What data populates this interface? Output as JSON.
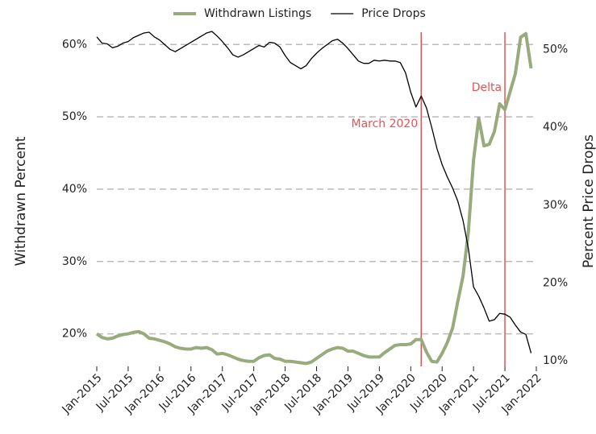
{
  "chart_data": {
    "type": "line",
    "y_label": "Withdrawn Percent",
    "y2_label": "Percent Price Drops",
    "x": [
      "2015-01",
      "2015-02",
      "2015-03",
      "2015-04",
      "2015-05",
      "2015-06",
      "2015-07",
      "2015-08",
      "2015-09",
      "2015-10",
      "2015-11",
      "2015-12",
      "2016-01",
      "2016-02",
      "2016-03",
      "2016-04",
      "2016-05",
      "2016-06",
      "2016-07",
      "2016-08",
      "2016-09",
      "2016-10",
      "2016-11",
      "2016-12",
      "2017-01",
      "2017-02",
      "2017-03",
      "2017-04",
      "2017-05",
      "2017-06",
      "2017-07",
      "2017-08",
      "2017-09",
      "2017-10",
      "2017-11",
      "2017-12",
      "2018-01",
      "2018-02",
      "2018-03",
      "2018-04",
      "2018-05",
      "2018-06",
      "2018-07",
      "2018-08",
      "2018-09",
      "2018-10",
      "2018-11",
      "2018-12",
      "2019-01",
      "2019-02",
      "2019-03",
      "2019-04",
      "2019-05",
      "2019-06",
      "2019-07",
      "2019-08",
      "2019-09",
      "2019-10",
      "2019-11",
      "2019-12",
      "2020-01",
      "2020-02",
      "2020-03",
      "2020-04",
      "2020-05",
      "2020-06",
      "2020-07",
      "2020-08",
      "2020-09",
      "2020-10",
      "2020-11",
      "2020-12",
      "2021-01",
      "2021-02",
      "2021-03",
      "2021-04",
      "2021-05",
      "2021-06",
      "2021-07",
      "2021-08",
      "2021-09",
      "2021-10",
      "2021-11",
      "2021-12"
    ],
    "series": [
      {
        "name": "Withdrawn Listings",
        "color": "#98ab7c",
        "axis": "y",
        "values": [
          20.0,
          19.5,
          19.3,
          19.4,
          19.7,
          19.9,
          20.0,
          20.2,
          20.3,
          20.0,
          19.4,
          19.3,
          19.1,
          18.9,
          18.6,
          18.2,
          18.0,
          17.9,
          17.9,
          18.1,
          18.0,
          18.1,
          17.8,
          17.2,
          17.3,
          17.1,
          16.8,
          16.5,
          16.3,
          16.2,
          16.2,
          16.7,
          17.0,
          17.1,
          16.6,
          16.5,
          16.2,
          16.2,
          16.1,
          16.0,
          15.9,
          16.1,
          16.6,
          17.1,
          17.6,
          17.9,
          18.1,
          18.0,
          17.6,
          17.6,
          17.3,
          17.0,
          16.8,
          16.8,
          16.8,
          17.4,
          17.9,
          18.4,
          18.5,
          18.5,
          18.6,
          19.2,
          19.2,
          17.5,
          16.2,
          16.1,
          17.3,
          18.8,
          20.8,
          24.5,
          28.0,
          34.0,
          44.0,
          49.8,
          46.0,
          46.2,
          48.0,
          51.8,
          51.0,
          53.5,
          56.0,
          61.0,
          61.5,
          56.7
        ]
      },
      {
        "name": "Price Drops",
        "color": "#000000",
        "axis": "y2",
        "values": [
          51.6,
          50.8,
          50.7,
          50.2,
          50.4,
          50.8,
          51.0,
          51.5,
          51.8,
          52.1,
          52.2,
          51.6,
          51.2,
          50.6,
          50.0,
          49.7,
          50.1,
          50.5,
          50.9,
          51.3,
          51.7,
          52.1,
          52.3,
          51.7,
          51.0,
          50.2,
          49.3,
          49.0,
          49.3,
          49.7,
          50.1,
          50.5,
          50.3,
          50.9,
          50.8,
          50.3,
          49.2,
          48.3,
          47.9,
          47.5,
          47.9,
          48.8,
          49.5,
          50.1,
          50.6,
          51.1,
          51.3,
          50.8,
          50.1,
          49.3,
          48.5,
          48.2,
          48.2,
          48.6,
          48.5,
          48.6,
          48.5,
          48.5,
          48.3,
          47.0,
          44.5,
          42.6,
          44.0,
          42.5,
          40.0,
          37.3,
          35.2,
          33.6,
          32.2,
          30.5,
          28.0,
          24.5,
          19.5,
          18.3,
          16.8,
          15.1,
          15.3,
          16.1,
          16.0,
          15.6,
          14.6,
          13.7,
          13.4,
          11.0
        ]
      }
    ],
    "xticks": [
      {
        "value": "2015-01",
        "label": "Jan-2015"
      },
      {
        "value": "2015-07",
        "label": "Jul-2015"
      },
      {
        "value": "2016-01",
        "label": "Jan-2016"
      },
      {
        "value": "2016-07",
        "label": "Jul-2016"
      },
      {
        "value": "2017-01",
        "label": "Jan-2017"
      },
      {
        "value": "2017-07",
        "label": "Jul-2017"
      },
      {
        "value": "2018-01",
        "label": "Jan-2018"
      },
      {
        "value": "2018-07",
        "label": "Jul-2018"
      },
      {
        "value": "2019-01",
        "label": "Jan-2019"
      },
      {
        "value": "2019-07",
        "label": "Jul-2019"
      },
      {
        "value": "2020-01",
        "label": "Jan-2020"
      },
      {
        "value": "2020-07",
        "label": "Jul-2020"
      },
      {
        "value": "2021-01",
        "label": "Jan-2021"
      },
      {
        "value": "2021-07",
        "label": "Jul-2021"
      },
      {
        "value": "2022-01",
        "label": "Jan-2022"
      }
    ],
    "xlim": [
      "2015-01",
      "2022-01"
    ],
    "ylim": [
      15.5,
      61.7
    ],
    "yticks": [
      {
        "value": 20,
        "label": "20%"
      },
      {
        "value": 30,
        "label": "30%"
      },
      {
        "value": 40,
        "label": "40%"
      },
      {
        "value": 50,
        "label": "50%"
      },
      {
        "value": 60,
        "label": "60%"
      }
    ],
    "y2lim": [
      9.3,
      52.2
    ],
    "y2ticks": [
      {
        "value": 10,
        "label": "10%"
      },
      {
        "value": 20,
        "label": "20%"
      },
      {
        "value": 30,
        "label": "30%"
      },
      {
        "value": 40,
        "label": "40%"
      },
      {
        "value": 50,
        "label": "50%"
      }
    ],
    "grid": true,
    "legend": "top",
    "annotations": [
      {
        "x": "2020-03",
        "text": "March 2020",
        "color": "#e05555",
        "y": 49.0
      },
      {
        "x": "2021-07",
        "text": "Delta",
        "color": "#e05555",
        "y": 54.0
      }
    ]
  }
}
